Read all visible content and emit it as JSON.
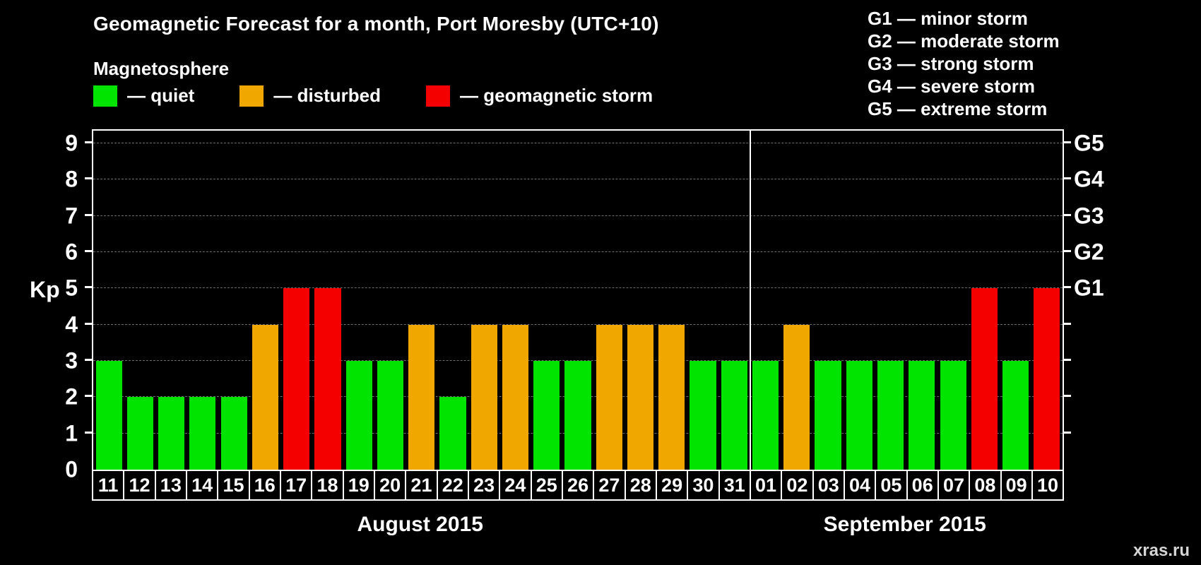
{
  "title": "Geomagnetic Forecast for a month, Port Moresby (UTC+10)",
  "legend": {
    "heading": "Magnetosphere",
    "items": [
      {
        "label": "— quiet",
        "status": "quiet",
        "color": "#00e400"
      },
      {
        "label": "— disturbed",
        "status": "disturbed",
        "color": "#f0a800"
      },
      {
        "label": "— geomagnetic storm",
        "status": "storm",
        "color": "#f40000"
      }
    ]
  },
  "storm_scale": [
    "G1 — minor storm",
    "G2 — moderate storm",
    "G3 — strong storm",
    "G4 — severe storm",
    "G5 — extreme storm"
  ],
  "watermark": "xras.ru",
  "chart_data": {
    "type": "bar",
    "title": "Geomagnetic Forecast for a month, Port Moresby (UTC+10)",
    "ylabel": "Kp",
    "ylim": [
      0,
      9
    ],
    "y_axis_max_display": 9.35,
    "yticks": [
      0,
      1,
      2,
      3,
      4,
      5,
      6,
      7,
      8,
      9
    ],
    "grid": true,
    "right_axis_ticks": [
      {
        "label": "G1",
        "kp": 5
      },
      {
        "label": "G2",
        "kp": 6
      },
      {
        "label": "G3",
        "kp": 7
      },
      {
        "label": "G4",
        "kp": 8
      },
      {
        "label": "G5",
        "kp": 9
      }
    ],
    "status_colors": {
      "quiet": "#00e400",
      "disturbed": "#f0a800",
      "storm": "#f40000"
    },
    "months": [
      {
        "label": "August 2015",
        "bars": [
          {
            "day": "11",
            "kp": 3,
            "status": "quiet"
          },
          {
            "day": "12",
            "kp": 2,
            "status": "quiet"
          },
          {
            "day": "13",
            "kp": 2,
            "status": "quiet"
          },
          {
            "day": "14",
            "kp": 2,
            "status": "quiet"
          },
          {
            "day": "15",
            "kp": 2,
            "status": "quiet"
          },
          {
            "day": "16",
            "kp": 4,
            "status": "disturbed"
          },
          {
            "day": "17",
            "kp": 5,
            "status": "storm"
          },
          {
            "day": "18",
            "kp": 5,
            "status": "storm"
          },
          {
            "day": "19",
            "kp": 3,
            "status": "quiet"
          },
          {
            "day": "20",
            "kp": 3,
            "status": "quiet"
          },
          {
            "day": "21",
            "kp": 4,
            "status": "disturbed"
          },
          {
            "day": "22",
            "kp": 2,
            "status": "quiet"
          },
          {
            "day": "23",
            "kp": 4,
            "status": "disturbed"
          },
          {
            "day": "24",
            "kp": 4,
            "status": "disturbed"
          },
          {
            "day": "25",
            "kp": 3,
            "status": "quiet"
          },
          {
            "day": "26",
            "kp": 3,
            "status": "quiet"
          },
          {
            "day": "27",
            "kp": 4,
            "status": "disturbed"
          },
          {
            "day": "28",
            "kp": 4,
            "status": "disturbed"
          },
          {
            "day": "29",
            "kp": 4,
            "status": "disturbed"
          },
          {
            "day": "30",
            "kp": 3,
            "status": "quiet"
          },
          {
            "day": "31",
            "kp": 3,
            "status": "quiet"
          }
        ]
      },
      {
        "label": "September 2015",
        "bars": [
          {
            "day": "01",
            "kp": 3,
            "status": "quiet"
          },
          {
            "day": "02",
            "kp": 4,
            "status": "disturbed"
          },
          {
            "day": "03",
            "kp": 3,
            "status": "quiet"
          },
          {
            "day": "04",
            "kp": 3,
            "status": "quiet"
          },
          {
            "day": "05",
            "kp": 3,
            "status": "quiet"
          },
          {
            "day": "06",
            "kp": 3,
            "status": "quiet"
          },
          {
            "day": "07",
            "kp": 3,
            "status": "quiet"
          },
          {
            "day": "08",
            "kp": 5,
            "status": "storm"
          },
          {
            "day": "09",
            "kp": 3,
            "status": "quiet"
          },
          {
            "day": "10",
            "kp": 5,
            "status": "storm"
          }
        ]
      }
    ]
  }
}
